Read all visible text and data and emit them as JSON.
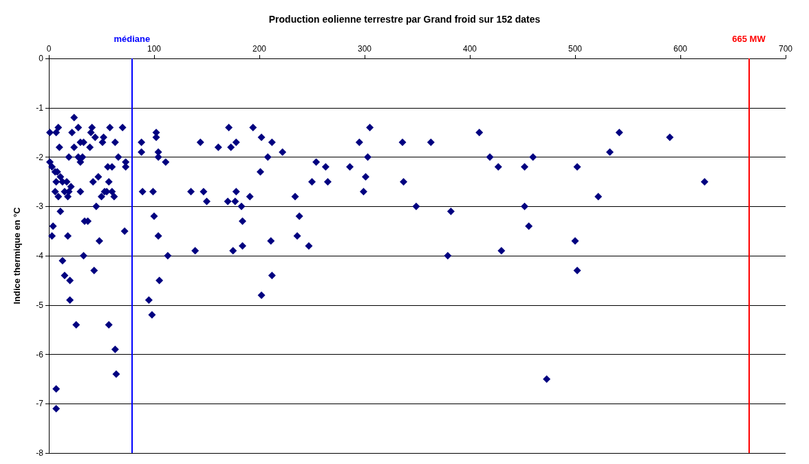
{
  "chart_data": {
    "type": "scatter",
    "title": "Production eolienne terrestre par Grand froid sur 152 dates",
    "ylabel": "Indice thermique en °C",
    "x": [
      1,
      1,
      3,
      4,
      3,
      7,
      9,
      6,
      7,
      6,
      8,
      9,
      10,
      11,
      11,
      13,
      13,
      15,
      15,
      17,
      18,
      18,
      19,
      19,
      20,
      20,
      21,
      22,
      24,
      24,
      26,
      28,
      28,
      30,
      30,
      30,
      32,
      33,
      33,
      34,
      37,
      39,
      40,
      41,
      42,
      43,
      44,
      45,
      47,
      48,
      50,
      51,
      52,
      53,
      55,
      56,
      57,
      57,
      58,
      60,
      60,
      62,
      63,
      63,
      64,
      66,
      70,
      72,
      73,
      73,
      7,
      7,
      88,
      88,
      89,
      95,
      99,
      98,
      100,
      102,
      102,
      104,
      104,
      104,
      105,
      111,
      113,
      135,
      139,
      144,
      147,
      150,
      161,
      170,
      171,
      173,
      175,
      177,
      178,
      178,
      183,
      184,
      184,
      191,
      194,
      201,
      202,
      202,
      208,
      211,
      212,
      212,
      222,
      234,
      236,
      238,
      247,
      250,
      254,
      263,
      265,
      286,
      295,
      299,
      301,
      303,
      305,
      336,
      337,
      349,
      363,
      379,
      382,
      409,
      419,
      427,
      430,
      452,
      452,
      456,
      460,
      473,
      500,
      502,
      502,
      522,
      533,
      542,
      590,
      623
    ],
    "values": [
      -1.5,
      -2.1,
      -2.2,
      -3.4,
      -3.6,
      -1.5,
      -1.4,
      -2.3,
      -2.5,
      -2.7,
      -2.3,
      -2.8,
      -1.8,
      -2.4,
      -3.1,
      -2.5,
      -4.1,
      -2.7,
      -4.4,
      -2.5,
      -3.6,
      -2.8,
      -2.7,
      -2.0,
      -4.5,
      -4.9,
      -2.6,
      -1.5,
      -1.2,
      -1.8,
      -5.4,
      -1.4,
      -2.0,
      -1.7,
      -2.1,
      -2.7,
      -2.0,
      -1.7,
      -4.0,
      -3.3,
      -3.3,
      -1.8,
      -1.5,
      -1.4,
      -2.5,
      -4.3,
      -1.6,
      -3.0,
      -2.4,
      -3.7,
      -2.8,
      -1.7,
      -1.6,
      -2.7,
      -2.7,
      -2.2,
      -2.5,
      -5.4,
      -1.4,
      -2.2,
      -2.7,
      -2.8,
      -1.7,
      -5.9,
      -6.4,
      -2.0,
      -1.4,
      -3.5,
      -2.1,
      -2.2,
      -6.7,
      -7.1,
      -1.7,
      -1.9,
      -2.7,
      -4.9,
      -2.7,
      -5.2,
      -3.2,
      -1.5,
      -1.6,
      -1.9,
      -2.0,
      -3.6,
      -4.5,
      -2.1,
      -4.0,
      -2.7,
      -3.9,
      -1.7,
      -2.7,
      -2.9,
      -1.8,
      -2.9,
      -1.4,
      -1.8,
      -3.9,
      -2.9,
      -1.7,
      -2.7,
      -3.0,
      -3.3,
      -3.8,
      -2.8,
      -1.4,
      -2.3,
      -1.6,
      -4.8,
      -2.0,
      -3.7,
      -4.4,
      -1.7,
      -1.9,
      -2.8,
      -3.6,
      -3.2,
      -3.8,
      -2.5,
      -2.1,
      -2.2,
      -2.5,
      -2.2,
      -1.7,
      -2.7,
      -2.4,
      -2.0,
      -1.4,
      -1.7,
      -2.5,
      -3.0,
      -1.7,
      -4.0,
      -3.1,
      -1.5,
      -2.0,
      -2.2,
      -3.9,
      -2.2,
      -3.0,
      -3.4,
      -2.0,
      -6.5,
      -3.7,
      -2.2,
      -4.3,
      -2.8,
      -1.9,
      -1.5,
      -1.6,
      -2.5
    ],
    "color": "#000080",
    "marker": "diamond",
    "xlim": [
      0,
      700
    ],
    "xticks": [
      0,
      100,
      200,
      300,
      400,
      500,
      600,
      700
    ],
    "ylim": [
      -8,
      0
    ],
    "yticks": [
      0,
      -1,
      -2,
      -3,
      -4,
      -5,
      -6,
      -7,
      -8
    ],
    "grid": "y",
    "ref_lines": [
      {
        "axis": "x",
        "value": 79,
        "label": "médiane",
        "color": "#0000ff"
      },
      {
        "axis": "x",
        "value": 665,
        "label": "665 MW",
        "color": "#ff0000"
      }
    ]
  }
}
